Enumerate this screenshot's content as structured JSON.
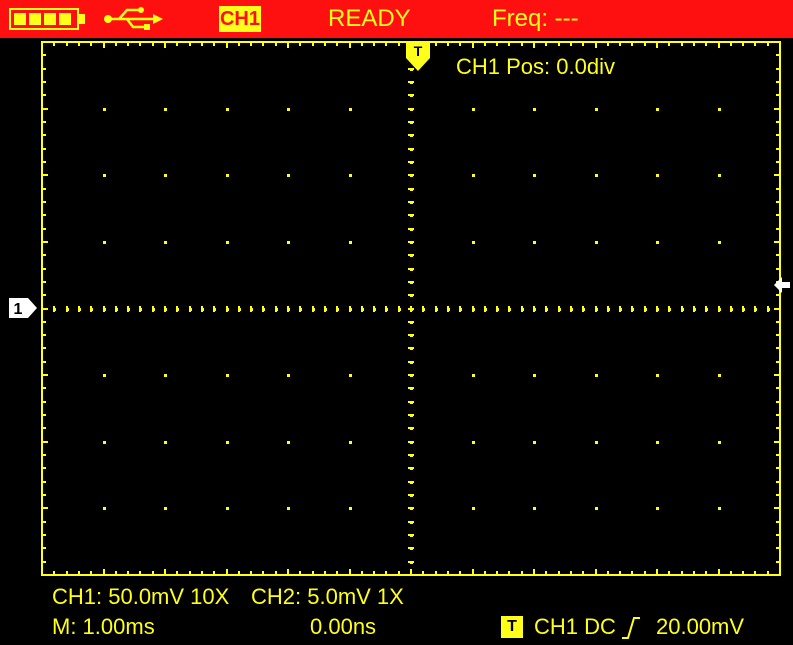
{
  "topbar": {
    "battery_icon": "battery-icon",
    "usb_icon": "usb-icon",
    "channel": "CH1",
    "status": "READY",
    "freq": "Freq: ---",
    "colors": {
      "bar": "#ff1010",
      "text": "#ffff1a"
    }
  },
  "screen": {
    "grid_color": "#ffff1a",
    "background": "#000000",
    "channel_marker": "1",
    "trigger_marker": "T",
    "position_label": "CH1 Pos: 0.0div"
  },
  "status": {
    "ch1": "CH1: 50.0mV 10X",
    "ch2": "CH2: 5.0mV 1X",
    "timebase": "M: 1.00ms",
    "delay": "0.00ns",
    "trigger_badge": "T",
    "trigger": "CH1 DC",
    "trigger_edge": "rising-edge-icon",
    "trigger_level": "20.00mV"
  }
}
